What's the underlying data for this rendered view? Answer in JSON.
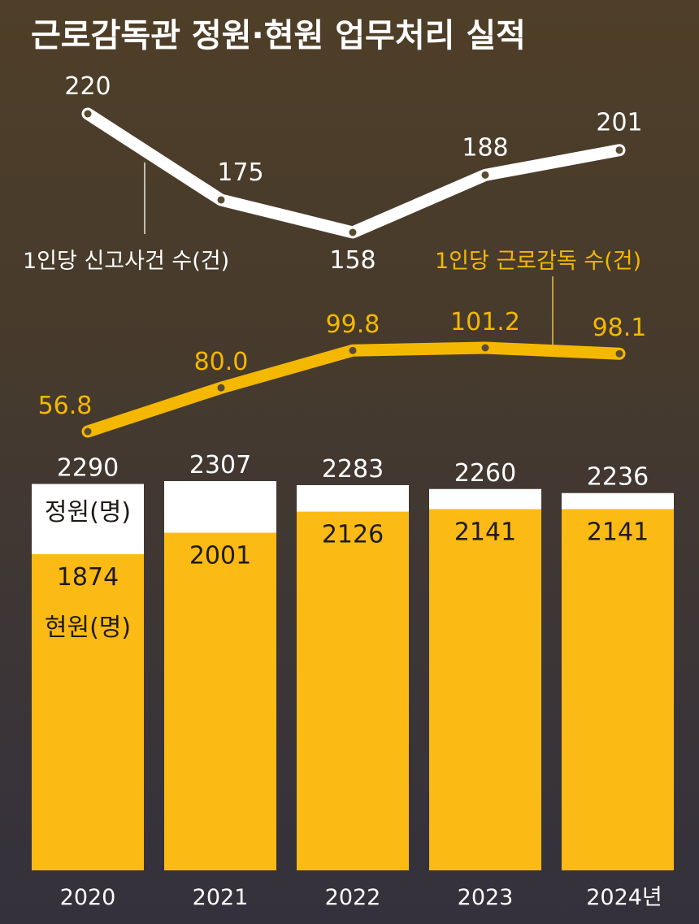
{
  "chart_data": [
    {
      "type": "line",
      "title": "근로감독관 정원·현원 업무처리 실적",
      "x": [
        "2020",
        "2021",
        "2022",
        "2023",
        "2024년"
      ],
      "series": [
        {
          "name": "1인당 신고사건 수(건)",
          "values": [
            220,
            175,
            158,
            188,
            201
          ],
          "color": "#ffffff"
        },
        {
          "name": "1인당 근로감독 수(건)",
          "values": [
            "56.8",
            "80.0",
            "99.8",
            "101.2",
            "98.1"
          ],
          "color": "#f5b800"
        }
      ]
    },
    {
      "type": "bar",
      "categories": [
        "2020",
        "2021",
        "2022",
        "2023",
        "2024년"
      ],
      "series": [
        {
          "name": "정원(명)",
          "values": [
            2290,
            2307,
            2283,
            2260,
            2236
          ],
          "color": "#ffffff"
        },
        {
          "name": "현원(명)",
          "values": [
            1874,
            2001,
            2126,
            2141,
            2141
          ],
          "color": "#fbbb14"
        }
      ]
    }
  ]
}
